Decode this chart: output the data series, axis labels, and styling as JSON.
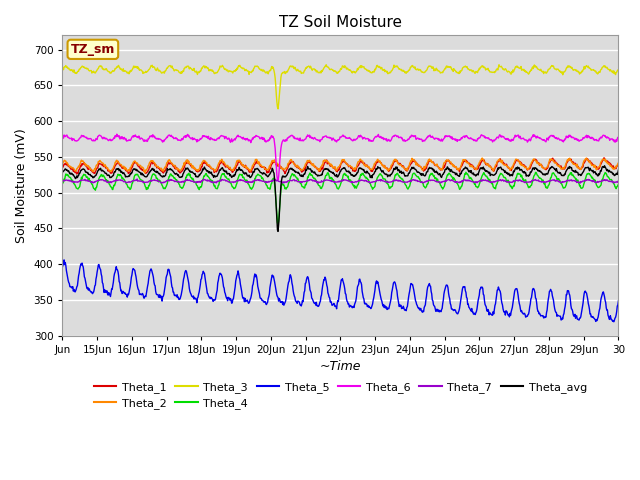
{
  "title": "TZ Soil Moisture",
  "ylabel": "Soil Moisture (mV)",
  "xlabel": "~Time",
  "label_box": "TZ_sm",
  "bg_color": "#dcdcdc",
  "ylim": [
    300,
    720
  ],
  "yticks": [
    300,
    350,
    400,
    450,
    500,
    550,
    600,
    650,
    700
  ],
  "x_labels": [
    "Jun",
    "15Jun",
    "16Jun",
    "17Jun",
    "18Jun",
    "19Jun",
    "20Jun",
    "21Jun",
    "22Jun",
    "23Jun",
    "24Jun",
    "25Jun",
    "26Jun",
    "27Jun",
    "28Jun",
    "29Jun",
    "30"
  ],
  "series_order": [
    "Theta_1",
    "Theta_2",
    "Theta_3",
    "Theta_4",
    "Theta_5",
    "Theta_6",
    "Theta_7",
    "Theta_avg"
  ],
  "series": {
    "Theta_1": {
      "color": "#dd0000",
      "base": 534,
      "amp": 6,
      "freq": 2.0,
      "phase": 0.0,
      "trend": 0.4,
      "spike_day": 6.2,
      "spike_depth": 0
    },
    "Theta_2": {
      "color": "#ff8800",
      "base": 537,
      "amp": 6,
      "freq": 2.0,
      "phase": 0.3,
      "trend": 0.2,
      "spike_day": 6.2,
      "spike_depth": 0
    },
    "Theta_3": {
      "color": "#dddd00",
      "base": 672,
      "amp": 4,
      "freq": 2.0,
      "phase": 0.1,
      "trend": 0.0,
      "spike_day": 6.2,
      "spike_depth": 18
    },
    "Theta_4": {
      "color": "#00dd00",
      "base": 516,
      "amp": 9,
      "freq": 2.0,
      "phase": -0.5,
      "trend": 0.1,
      "spike_day": 6.2,
      "spike_depth": 22
    },
    "Theta_5": {
      "color": "#0000ee",
      "base": 358,
      "amp": 20,
      "freq": 2.0,
      "phase": 1.0,
      "trend": -0.8,
      "spike_day": 6.2,
      "spike_depth": 0
    },
    "Theta_6": {
      "color": "#ee00ee",
      "base": 576,
      "amp": 3,
      "freq": 2.0,
      "phase": 0.2,
      "trend": 0.0,
      "spike_day": 6.2,
      "spike_depth": 20
    },
    "Theta_7": {
      "color": "#9900cc",
      "base": 516,
      "amp": 1.5,
      "freq": 2.0,
      "phase": 0.0,
      "trend": 0.0,
      "spike_day": 6.2,
      "spike_depth": 0
    },
    "Theta_avg": {
      "color": "#000000",
      "base": 527,
      "amp": 5,
      "freq": 2.0,
      "phase": 0.1,
      "trend": 0.2,
      "spike_day": 6.2,
      "spike_depth": 28
    }
  },
  "n_points": 960,
  "total_days": 16.0,
  "legend_row1": [
    "Theta_1",
    "Theta_2",
    "Theta_3",
    "Theta_4",
    "Theta_5",
    "Theta_6"
  ],
  "legend_row2": [
    "Theta_7",
    "Theta_avg"
  ]
}
